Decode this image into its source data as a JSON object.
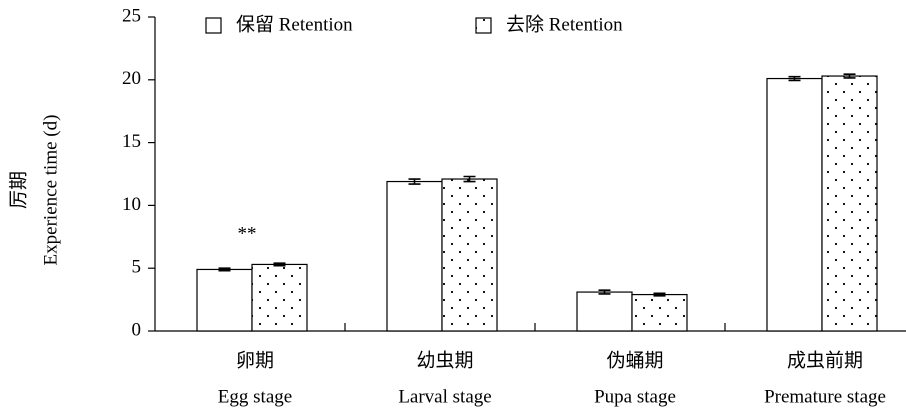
{
  "chart_data": {
    "type": "bar",
    "ylabel": [
      "厉期",
      "Experience time (d)"
    ],
    "categories": [
      [
        "卵期",
        "Egg stage"
      ],
      [
        "幼虫期",
        "Larval stage"
      ],
      [
        "伪蛹期",
        "Pupa stage"
      ],
      [
        "成虫前期",
        "Premature stage"
      ]
    ],
    "series": [
      {
        "name": "保留 Retention",
        "color": "#ffffff",
        "pattern": "none",
        "values": [
          4.9,
          11.9,
          3.1,
          20.1
        ],
        "errors": [
          0.1,
          0.2,
          0.15,
          0.15
        ]
      },
      {
        "name": "去除 Retention",
        "color": "#ffffff",
        "pattern": "dots",
        "values": [
          5.3,
          12.1,
          2.9,
          20.3
        ],
        "errors": [
          0.1,
          0.2,
          0.1,
          0.15
        ]
      }
    ],
    "annotations": [
      {
        "text": "**",
        "category": 0
      }
    ],
    "ylim": [
      0,
      25
    ],
    "yticks": [
      0,
      5,
      10,
      15,
      20,
      25
    ],
    "grid": false
  }
}
